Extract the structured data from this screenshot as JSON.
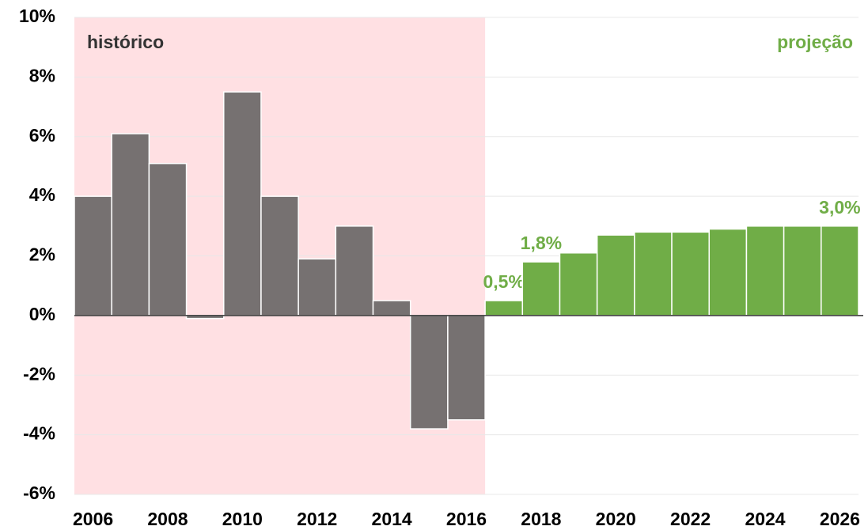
{
  "chart_data": {
    "type": "bar",
    "categories": [
      "2006",
      null,
      "2008",
      null,
      "2010",
      null,
      "2012",
      null,
      "2014",
      null,
      "2016",
      null,
      "2018",
      null,
      "2020",
      null,
      "2022",
      null,
      "2024",
      null,
      "2026"
    ],
    "values": [
      4.0,
      6.1,
      5.1,
      -0.1,
      7.5,
      4.0,
      1.9,
      3.0,
      0.5,
      -3.8,
      -3.5,
      0.5,
      1.8,
      2.1,
      2.7,
      2.8,
      2.8,
      2.9,
      3.0,
      3.0,
      3.0
    ],
    "value_labels": [
      null,
      null,
      null,
      null,
      null,
      null,
      null,
      null,
      null,
      null,
      null,
      "0,5%",
      "1,8%",
      null,
      null,
      null,
      null,
      null,
      null,
      null,
      "3,0%"
    ],
    "colors": [
      "#767171",
      "#767171",
      "#767171",
      "#767171",
      "#767171",
      "#767171",
      "#767171",
      "#767171",
      "#767171",
      "#767171",
      "#767171",
      "#70ad47",
      "#70ad47",
      "#70ad47",
      "#70ad47",
      "#70ad47",
      "#70ad47",
      "#70ad47",
      "#70ad47",
      "#70ad47",
      "#70ad47"
    ],
    "annotations": [
      "histórico",
      "projeção"
    ],
    "ylim": [
      -6,
      10
    ],
    "yticks": [
      {
        "value": -6,
        "label": "-6%"
      },
      {
        "value": -4,
        "label": "-4%"
      },
      {
        "value": -2,
        "label": "-2%"
      },
      {
        "value": 0,
        "label": "0%"
      },
      {
        "value": 2,
        "label": "2%"
      },
      {
        "value": 4,
        "label": "4%"
      },
      {
        "value": 6,
        "label": "6%"
      },
      {
        "value": 8,
        "label": "8%"
      },
      {
        "value": 10,
        "label": "10%"
      }
    ],
    "grid": true
  }
}
